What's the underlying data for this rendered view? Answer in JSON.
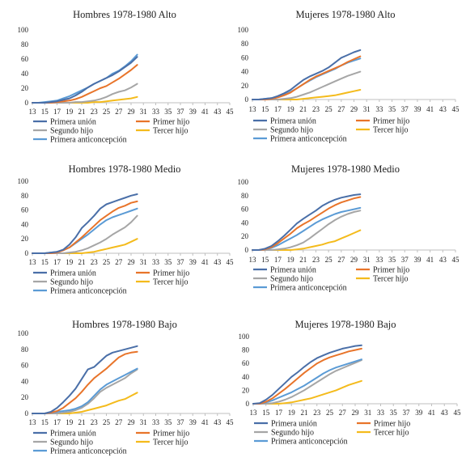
{
  "colors": {
    "primera_union": "#4a6fa8",
    "primer_hijo": "#e8742a",
    "segundo_hijo": "#a6a6a6",
    "tercer_hijo": "#f4bb1c",
    "primera_anticoncepcion": "#5b9bd5",
    "axis": "#bfbfbf"
  },
  "chart_data": [
    {
      "type": "line",
      "title": "Hombres 1978-1980 Alto",
      "x_ticks": [
        13,
        15,
        17,
        19,
        21,
        23,
        25,
        27,
        29,
        31,
        33,
        35,
        37,
        39,
        41,
        43,
        45
      ],
      "y_ticks": [
        0,
        20,
        40,
        60,
        80,
        100
      ],
      "ylim": [
        0,
        100
      ],
      "xlim": [
        13,
        45
      ],
      "grid": false,
      "legend_placement": "bottom",
      "x": [
        13,
        14,
        15,
        16,
        17,
        18,
        19,
        20,
        21,
        22,
        23,
        24,
        25,
        26,
        27,
        28,
        29,
        30
      ],
      "series": [
        {
          "name": "Primera unión",
          "key": "primera_union",
          "values": [
            0,
            0,
            0,
            1,
            2,
            4,
            6,
            10,
            15,
            21,
            26,
            30,
            34,
            38,
            43,
            49,
            55,
            63
          ]
        },
        {
          "name": "Primer hijo",
          "key": "primer_hijo",
          "values": [
            0,
            0,
            0,
            0,
            1,
            2,
            3,
            5,
            8,
            12,
            16,
            20,
            23,
            28,
            33,
            39,
            45,
            52
          ]
        },
        {
          "name": "Segundo hijo",
          "key": "segundo_hijo",
          "values": [
            0,
            0,
            0,
            0,
            0,
            0,
            0,
            1,
            1,
            2,
            3,
            5,
            8,
            12,
            15,
            17,
            21,
            26
          ]
        },
        {
          "name": "Tercer hijo",
          "key": "tercer_hijo",
          "values": [
            0,
            0,
            0,
            0,
            0,
            0,
            0,
            0,
            0,
            0,
            1,
            1,
            2,
            3,
            4,
            5,
            6,
            8
          ]
        },
        {
          "name": "Primera anticoncepción",
          "key": "primera_anticoncepcion",
          "values": [
            0,
            0,
            1,
            2,
            3,
            6,
            9,
            13,
            17,
            21,
            26,
            30,
            34,
            40,
            44,
            50,
            57,
            66
          ]
        }
      ]
    },
    {
      "type": "line",
      "title": "Mujeres 1978-1980 Alto",
      "x_ticks": [
        13,
        15,
        17,
        19,
        21,
        23,
        25,
        27,
        29,
        31,
        33,
        35,
        37,
        39,
        41,
        43,
        45
      ],
      "y_ticks": [
        0,
        20,
        40,
        60,
        80,
        100
      ],
      "ylim": [
        0,
        100
      ],
      "xlim": [
        13,
        45
      ],
      "grid": false,
      "legend_placement": "bottom",
      "x": [
        13,
        14,
        15,
        16,
        17,
        18,
        19,
        20,
        21,
        22,
        23,
        24,
        25,
        26,
        27,
        28,
        29,
        30
      ],
      "series": [
        {
          "name": "Primera unión",
          "key": "primera_union",
          "values": [
            0,
            0,
            1,
            2,
            5,
            9,
            14,
            21,
            28,
            33,
            37,
            41,
            46,
            53,
            60,
            64,
            68,
            71
          ]
        },
        {
          "name": "Primer hijo",
          "key": "primer_hijo",
          "values": [
            0,
            0,
            0,
            1,
            3,
            6,
            10,
            16,
            22,
            28,
            33,
            37,
            41,
            45,
            49,
            54,
            58,
            62
          ]
        },
        {
          "name": "Segundo hijo",
          "key": "segundo_hijo",
          "values": [
            0,
            0,
            0,
            0,
            0,
            1,
            2,
            4,
            7,
            10,
            14,
            18,
            22,
            26,
            30,
            34,
            37,
            40
          ]
        },
        {
          "name": "Tercer hijo",
          "key": "tercer_hijo",
          "values": [
            0,
            0,
            0,
            0,
            0,
            0,
            0,
            0,
            1,
            2,
            3,
            4,
            5,
            6,
            8,
            10,
            12,
            14
          ]
        },
        {
          "name": "Primera anticoncepción",
          "key": "primera_anticoncepcion",
          "values": [
            0,
            0,
            1,
            2,
            4,
            7,
            11,
            16,
            22,
            27,
            32,
            36,
            40,
            44,
            49,
            53,
            56,
            59
          ]
        }
      ]
    },
    {
      "type": "line",
      "title": "Hombres 1978-1980 Medio",
      "x_ticks": [
        13,
        15,
        17,
        19,
        21,
        23,
        25,
        27,
        29,
        31,
        33,
        35,
        37,
        39,
        41,
        43,
        45
      ],
      "y_ticks": [
        0,
        20,
        40,
        60,
        80,
        100
      ],
      "ylim": [
        0,
        100
      ],
      "xlim": [
        13,
        45
      ],
      "grid": false,
      "legend_placement": "bottom",
      "x": [
        13,
        14,
        15,
        16,
        17,
        18,
        19,
        20,
        21,
        22,
        23,
        24,
        25,
        26,
        27,
        28,
        29,
        30
      ],
      "series": [
        {
          "name": "Primera unión",
          "key": "primera_union",
          "values": [
            0,
            0,
            0,
            1,
            2,
            5,
            12,
            22,
            35,
            43,
            52,
            62,
            68,
            71,
            74,
            77,
            80,
            82
          ]
        },
        {
          "name": "Primer hijo",
          "key": "primer_hijo",
          "values": [
            0,
            0,
            0,
            0,
            1,
            4,
            8,
            15,
            22,
            30,
            38,
            46,
            52,
            58,
            63,
            66,
            70,
            72
          ]
        },
        {
          "name": "Segundo hijo",
          "key": "segundo_hijo",
          "values": [
            0,
            0,
            0,
            0,
            0,
            0,
            1,
            2,
            4,
            7,
            11,
            15,
            20,
            26,
            31,
            36,
            43,
            52
          ]
        },
        {
          "name": "Tercer hijo",
          "key": "tercer_hijo",
          "values": [
            0,
            0,
            0,
            0,
            0,
            0,
            0,
            0,
            0,
            1,
            2,
            4,
            6,
            8,
            10,
            12,
            16,
            20
          ]
        },
        {
          "name": "Primera anticoncepción",
          "key": "primera_anticoncepcion",
          "values": [
            0,
            0,
            0,
            1,
            2,
            4,
            8,
            14,
            20,
            26,
            33,
            40,
            46,
            50,
            53,
            56,
            59,
            62
          ]
        }
      ]
    },
    {
      "type": "line",
      "title": "Mujeres 1978-1980 Medio",
      "x_ticks": [
        13,
        15,
        17,
        19,
        21,
        23,
        25,
        27,
        29,
        31,
        33,
        35,
        37,
        39,
        41,
        43,
        45
      ],
      "y_ticks": [
        0,
        20,
        40,
        60,
        80,
        100
      ],
      "ylim": [
        0,
        100
      ],
      "xlim": [
        13,
        45
      ],
      "grid": false,
      "legend_placement": "bottom",
      "x": [
        13,
        14,
        15,
        16,
        17,
        18,
        19,
        20,
        21,
        22,
        23,
        24,
        25,
        26,
        27,
        28,
        29,
        30
      ],
      "series": [
        {
          "name": "Primera unión",
          "key": "primera_union",
          "values": [
            0,
            0,
            2,
            6,
            13,
            21,
            30,
            39,
            46,
            52,
            58,
            65,
            70,
            74,
            77,
            79,
            81,
            82
          ]
        },
        {
          "name": "Primer hijo",
          "key": "primer_hijo",
          "values": [
            0,
            0,
            1,
            4,
            10,
            17,
            24,
            32,
            38,
            43,
            49,
            55,
            61,
            66,
            70,
            73,
            76,
            78
          ]
        },
        {
          "name": "Segundo hijo",
          "key": "segundo_hijo",
          "values": [
            0,
            0,
            0,
            0,
            1,
            2,
            4,
            7,
            11,
            17,
            24,
            31,
            38,
            44,
            49,
            53,
            56,
            58
          ]
        },
        {
          "name": "Tercer hijo",
          "key": "tercer_hijo",
          "values": [
            0,
            0,
            0,
            0,
            0,
            0,
            0,
            1,
            2,
            4,
            6,
            8,
            11,
            13,
            17,
            21,
            25,
            29
          ]
        },
        {
          "name": "Primera anticoncepción",
          "key": "primera_anticoncepcion",
          "values": [
            0,
            0,
            1,
            3,
            7,
            12,
            17,
            22,
            28,
            34,
            40,
            45,
            49,
            53,
            56,
            58,
            60,
            62
          ]
        }
      ]
    },
    {
      "type": "line",
      "title": "Hombres 1978-1980 Bajo",
      "x_ticks": [
        13,
        15,
        17,
        19,
        21,
        23,
        25,
        27,
        29,
        31,
        33,
        35,
        37,
        39,
        41,
        43,
        45
      ],
      "y_ticks": [
        0,
        20,
        40,
        60,
        80,
        100
      ],
      "ylim": [
        0,
        100
      ],
      "xlim": [
        13,
        45
      ],
      "grid": false,
      "legend_placement": "bottom",
      "x": [
        13,
        14,
        15,
        16,
        17,
        18,
        19,
        20,
        21,
        22,
        23,
        24,
        25,
        26,
        27,
        28,
        29,
        30
      ],
      "series": [
        {
          "name": "Primera unión",
          "key": "primera_union",
          "values": [
            0,
            0,
            0,
            2,
            7,
            14,
            22,
            31,
            43,
            55,
            58,
            65,
            72,
            76,
            78,
            80,
            82,
            84
          ]
        },
        {
          "name": "Primer hijo",
          "key": "primer_hijo",
          "values": [
            0,
            0,
            0,
            1,
            3,
            7,
            13,
            19,
            27,
            36,
            44,
            50,
            56,
            63,
            70,
            74,
            76,
            77
          ]
        },
        {
          "name": "Segundo hijo",
          "key": "segundo_hijo",
          "values": [
            0,
            0,
            0,
            0,
            0,
            1,
            2,
            4,
            7,
            12,
            19,
            27,
            32,
            36,
            40,
            44,
            50,
            55
          ]
        },
        {
          "name": "Tercer hijo",
          "key": "tercer_hijo",
          "values": [
            0,
            0,
            0,
            0,
            0,
            0,
            0,
            1,
            2,
            4,
            6,
            8,
            10,
            13,
            16,
            18,
            22,
            26
          ]
        },
        {
          "name": "Primera anticoncepción",
          "key": "primera_anticoncepcion",
          "values": [
            0,
            0,
            0,
            1,
            2,
            3,
            4,
            6,
            9,
            14,
            22,
            30,
            36,
            40,
            44,
            48,
            52,
            56
          ]
        }
      ]
    },
    {
      "type": "line",
      "title": "Mujeres 1978-1980 Bajo",
      "x_ticks": [
        13,
        15,
        17,
        19,
        21,
        23,
        25,
        27,
        29,
        31,
        33,
        35,
        37,
        39,
        41,
        43,
        45
      ],
      "y_ticks": [
        0,
        20,
        40,
        60,
        80,
        100
      ],
      "ylim": [
        0,
        100
      ],
      "xlim": [
        13,
        45
      ],
      "grid": false,
      "legend_placement": "bottom",
      "x": [
        13,
        14,
        15,
        16,
        17,
        18,
        19,
        20,
        21,
        22,
        23,
        24,
        25,
        26,
        27,
        28,
        29,
        30
      ],
      "series": [
        {
          "name": "Primera unión",
          "key": "primera_union",
          "values": [
            0,
            1,
            6,
            13,
            22,
            31,
            40,
            47,
            55,
            62,
            68,
            72,
            76,
            79,
            82,
            84,
            86,
            87
          ]
        },
        {
          "name": "Primer hijo",
          "key": "primer_hijo",
          "values": [
            0,
            0,
            3,
            8,
            15,
            22,
            30,
            38,
            46,
            53,
            60,
            65,
            69,
            72,
            75,
            78,
            80,
            82
          ]
        },
        {
          "name": "Segundo hijo",
          "key": "segundo_hijo",
          "values": [
            0,
            0,
            0,
            1,
            3,
            6,
            10,
            15,
            20,
            26,
            32,
            38,
            44,
            49,
            53,
            57,
            61,
            65
          ]
        },
        {
          "name": "Tercer hijo",
          "key": "tercer_hijo",
          "values": [
            0,
            0,
            0,
            0,
            0,
            1,
            2,
            4,
            6,
            8,
            11,
            14,
            17,
            20,
            24,
            28,
            31,
            34
          ]
        },
        {
          "name": "Primera anticoncepción",
          "key": "primera_anticoncepcion",
          "values": [
            0,
            0,
            2,
            5,
            9,
            13,
            17,
            22,
            27,
            33,
            39,
            45,
            50,
            54,
            57,
            60,
            63,
            66
          ]
        }
      ]
    }
  ]
}
